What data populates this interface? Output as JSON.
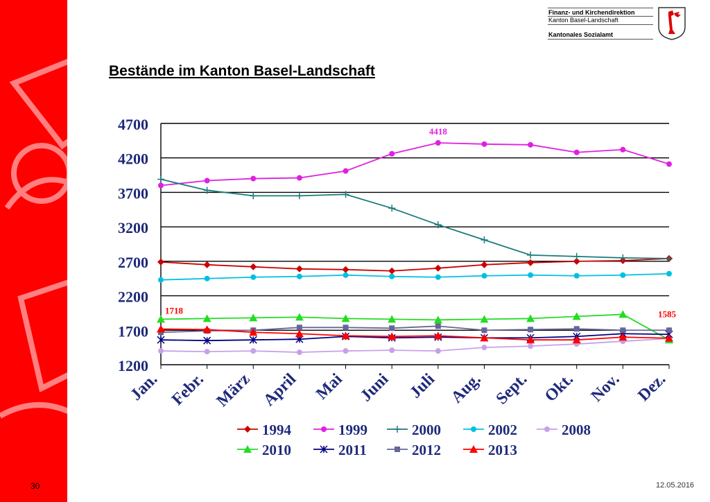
{
  "header": {
    "line1": "Finanz- und Kirchendirektion",
    "line2": "Kanton Basel-Landschaft",
    "line3": "Kantonales Sozialamt"
  },
  "slide": {
    "title": "Bestände im Kanton Basel-Landschaft",
    "page_number": "30",
    "date": "12.05.2016"
  },
  "colors": {
    "brand_red": "#ff0000",
    "watermark": "#ffffff"
  },
  "chart_data": {
    "type": "line",
    "categories": [
      "Jan.",
      "Febr.",
      "März",
      "April",
      "Mai",
      "Juni",
      "Juli",
      "Aug.",
      "Sept.",
      "Okt.",
      "Nov.",
      "Dez."
    ],
    "ylim": [
      1200,
      4700
    ],
    "yticks": [
      1200,
      1700,
      2200,
      2700,
      3200,
      3700,
      4200,
      4700
    ],
    "grid": true,
    "legend_position": "bottom",
    "series": [
      {
        "name": "1994",
        "color": "#cc0000",
        "marker": "diamond",
        "values": [
          2690,
          2650,
          2620,
          2590,
          2580,
          2560,
          2600,
          2650,
          2680,
          2700,
          2710,
          2740
        ]
      },
      {
        "name": "1999",
        "color": "#e020e0",
        "marker": "circle",
        "values": [
          3800,
          3870,
          3900,
          3910,
          4010,
          4260,
          4418,
          4400,
          4390,
          4280,
          4320,
          4110
        ]
      },
      {
        "name": "2000",
        "color": "#1a7a7a",
        "marker": "plus",
        "values": [
          3890,
          3730,
          3650,
          3650,
          3670,
          3470,
          3230,
          3010,
          2790,
          2770,
          2750,
          2740
        ]
      },
      {
        "name": "2002",
        "color": "#00c0e0",
        "marker": "circle",
        "values": [
          2430,
          2450,
          2470,
          2480,
          2500,
          2480,
          2470,
          2490,
          2500,
          2490,
          2500,
          2520
        ]
      },
      {
        "name": "2008",
        "color": "#c8a0e8",
        "marker": "circle",
        "values": [
          1400,
          1390,
          1400,
          1380,
          1400,
          1410,
          1400,
          1450,
          1470,
          1500,
          1540,
          1580
        ]
      },
      {
        "name": "2010",
        "color": "#22dd22",
        "marker": "triangle",
        "values": [
          1860,
          1870,
          1880,
          1890,
          1870,
          1860,
          1850,
          1860,
          1870,
          1900,
          1930,
          1560
        ]
      },
      {
        "name": "2011",
        "color": "#000080",
        "marker": "star",
        "values": [
          1560,
          1550,
          1560,
          1570,
          1610,
          1590,
          1600,
          1590,
          1590,
          1610,
          1650,
          1640
        ]
      },
      {
        "name": "2012",
        "color": "#666699",
        "marker": "square",
        "values": [
          1670,
          1690,
          1700,
          1740,
          1740,
          1730,
          1760,
          1700,
          1710,
          1720,
          1700,
          1700
        ]
      },
      {
        "name": "2013",
        "color": "#ff0000",
        "marker": "triangle",
        "values": [
          1718,
          1710,
          1670,
          1650,
          1620,
          1610,
          1620,
          1590,
          1560,
          1560,
          1600,
          1585
        ]
      }
    ],
    "annotations": [
      {
        "text": "4418",
        "series": "1999",
        "index": 6,
        "color": "#e020e0"
      },
      {
        "text": "1718",
        "series": "2013",
        "index": 0,
        "color": "#ff0000"
      },
      {
        "text": "1585",
        "series": "2013",
        "index": 11,
        "color": "#ff0000"
      }
    ]
  }
}
